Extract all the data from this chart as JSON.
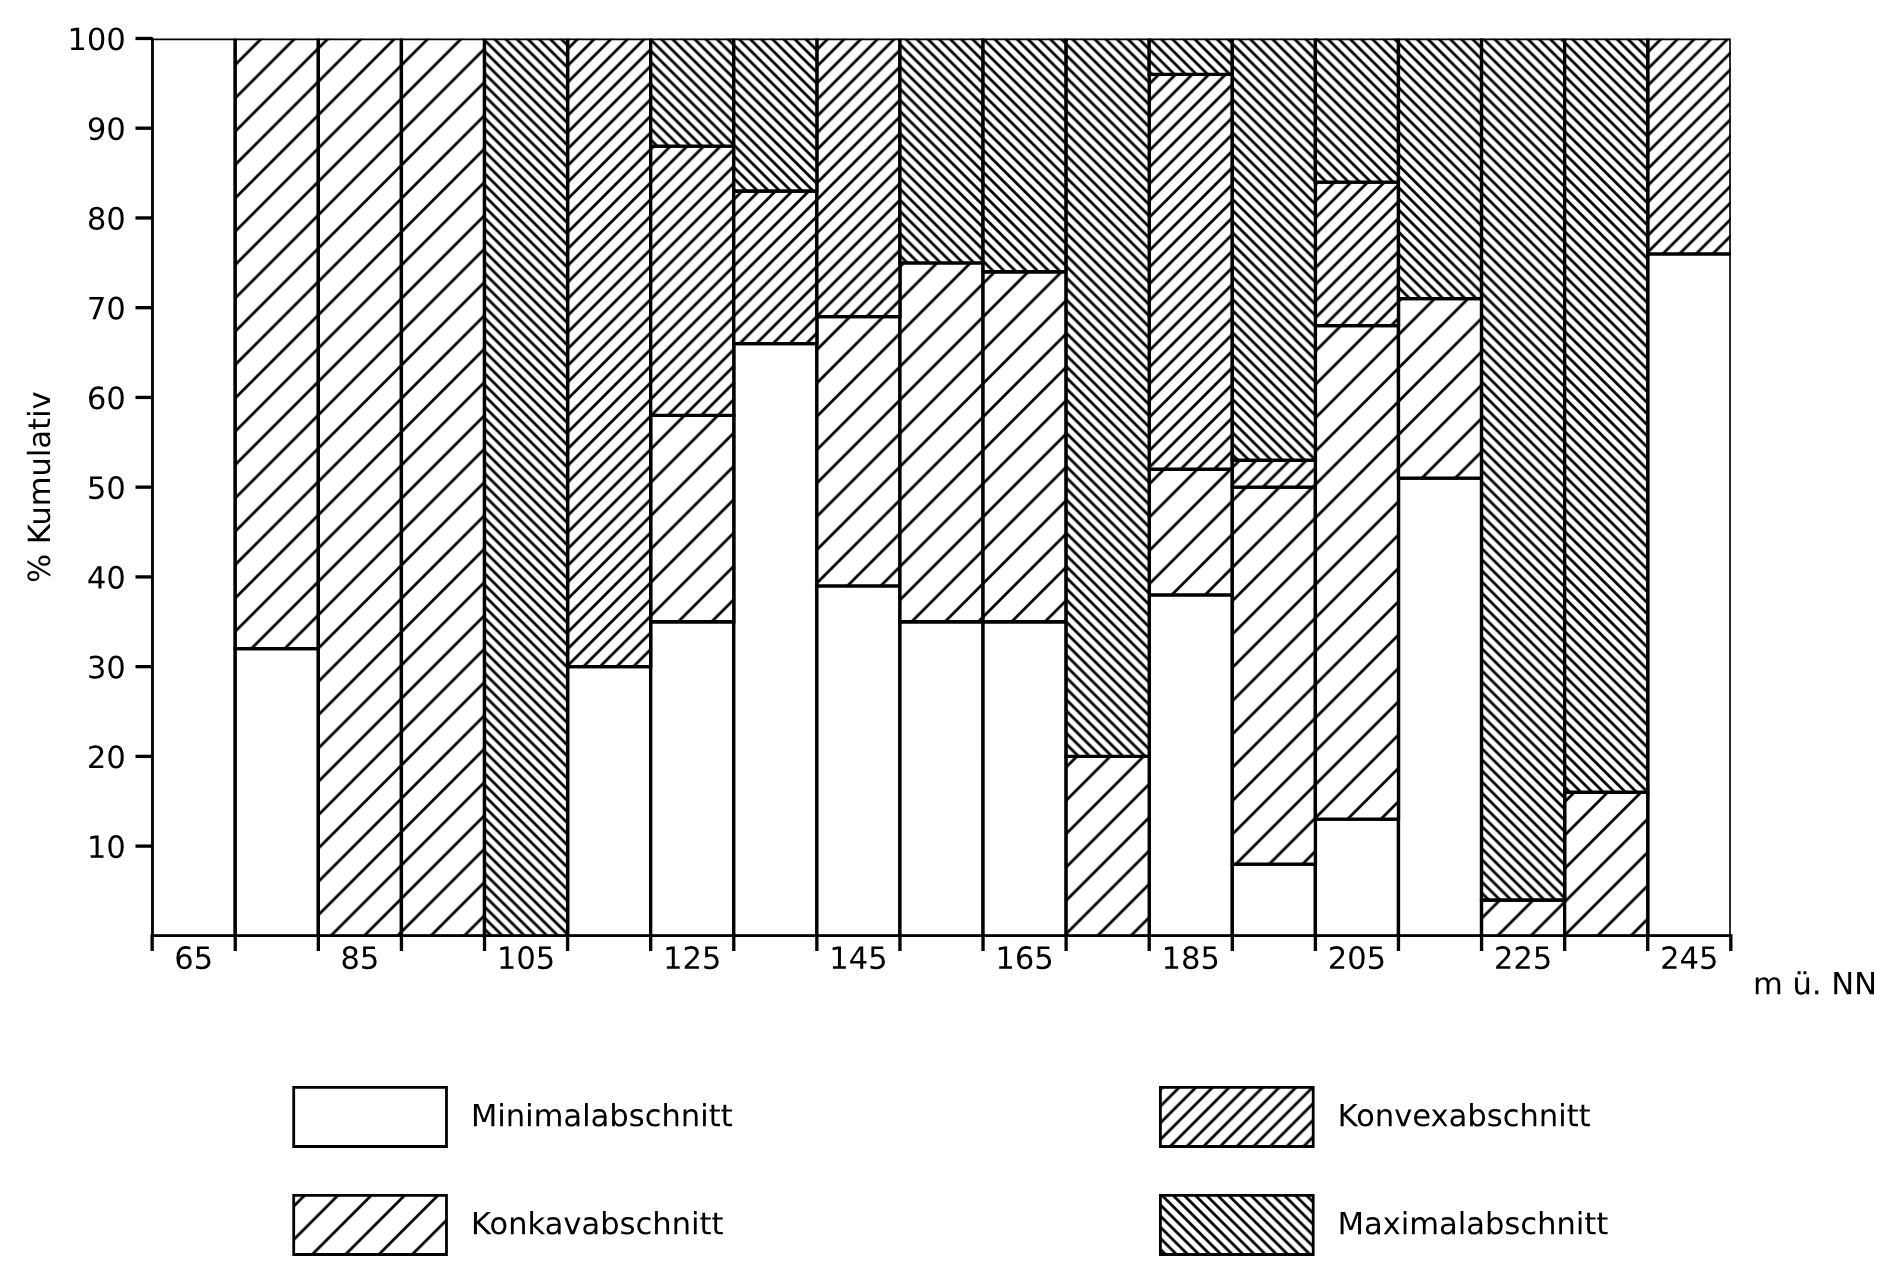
{
  "chart_data": {
    "type": "bar",
    "stacked": true,
    "ylabel": "% Kumulativ",
    "xlabel": "m ü. NN",
    "categories": [
      "65",
      null,
      "85",
      null,
      "105",
      null,
      "125",
      null,
      "145",
      null,
      "165",
      null,
      "185",
      null,
      "205",
      null,
      "225",
      null,
      "245"
    ],
    "series": [
      {
        "name": "Minimalabschnitt",
        "color": "#ffffff",
        "values": [
          100,
          32,
          0,
          0,
          0,
          30,
          35,
          66,
          39,
          35,
          35,
          0,
          38,
          8,
          13,
          51,
          0,
          0,
          76
        ]
      },
      {
        "name": "Konkavabschnitt",
        "color": "#000000",
        "values": [
          0,
          68,
          100,
          100,
          0,
          0,
          23,
          0,
          30,
          40,
          39,
          20,
          14,
          42,
          55,
          20,
          4,
          16,
          0
        ]
      },
      {
        "name": "Konvexabschnitt",
        "color": "#000000",
        "values": [
          0,
          0,
          0,
          0,
          0,
          70,
          30,
          17,
          31,
          0,
          0,
          0,
          44,
          3,
          16,
          0,
          0,
          0,
          24
        ]
      },
      {
        "name": "Maximalabschnitt",
        "color": "#000000",
        "values": [
          0,
          0,
          0,
          0,
          100,
          0,
          12,
          17,
          0,
          25,
          26,
          80,
          4,
          47,
          16,
          29,
          96,
          84,
          0
        ]
      }
    ],
    "ylim": [
      0,
      100
    ],
    "yticks": [
      10,
      20,
      30,
      40,
      50,
      60,
      70,
      80,
      90,
      100
    ],
    "grid": false,
    "legend": "bottom"
  }
}
